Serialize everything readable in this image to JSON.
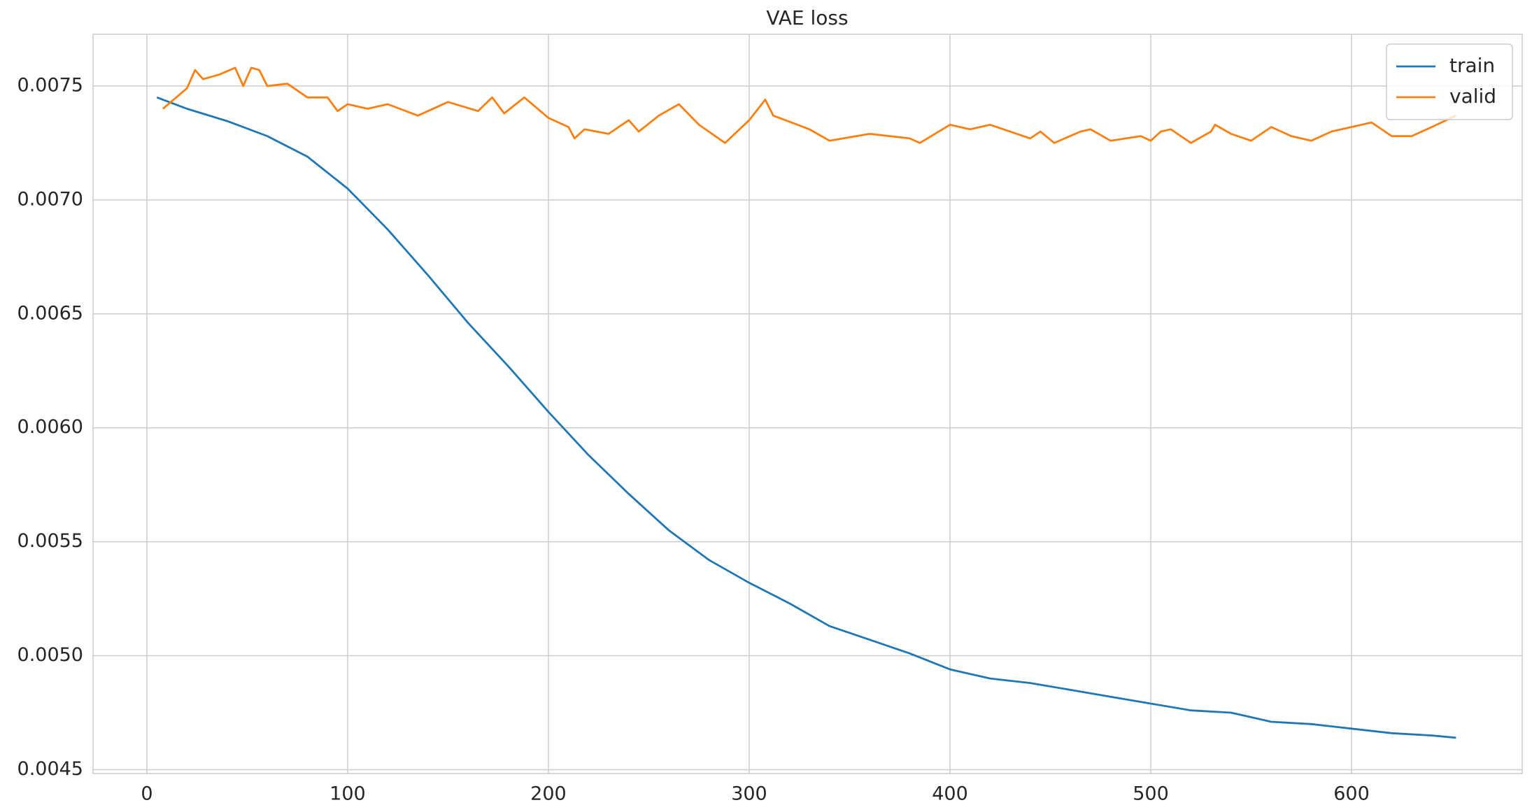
{
  "chart_data": {
    "type": "line",
    "title": "VAE loss",
    "xlim": [
      -26.8,
      685
    ],
    "xticks": [
      0,
      100,
      200,
      300,
      400,
      500,
      600
    ],
    "ylim": [
      0.004483,
      0.007727
    ],
    "yticks": [
      0.0045,
      {
        "value": 0.005,
        "label": "0.0050"
      },
      0.0055,
      {
        "value": 0.006,
        "label": "0.0060"
      },
      0.0065,
      {
        "value": 0.007,
        "label": "0.0070"
      },
      0.0075
    ],
    "grid": true,
    "legend": "upper-right",
    "series": [
      {
        "name": "train",
        "color": "#1f77b4",
        "x": [
          5,
          20,
          40,
          60,
          80,
          100,
          120,
          140,
          160,
          180,
          200,
          220,
          240,
          260,
          280,
          300,
          320,
          340,
          360,
          380,
          400,
          420,
          440,
          460,
          480,
          500,
          520,
          540,
          560,
          580,
          600,
          620,
          640,
          652
        ],
        "values": [
          0.00745,
          0.0074,
          0.007346,
          0.00728,
          0.00719,
          0.00705,
          0.00687,
          0.00667,
          0.00646,
          0.00627,
          0.00607,
          0.00588,
          0.00571,
          0.00555,
          0.00542,
          0.00532,
          0.00523,
          0.00513,
          0.00507,
          0.00501,
          0.00494,
          0.0049,
          0.00488,
          0.00485,
          0.00482,
          0.00479,
          0.00476,
          0.00475,
          0.00471,
          0.0047,
          0.00468,
          0.00466,
          0.00465,
          0.00464
        ]
      },
      {
        "name": "valid",
        "color": "#ff7f0e",
        "x": [
          8,
          20,
          24,
          28,
          36,
          44,
          48,
          52,
          56,
          60,
          70,
          80,
          90,
          95,
          100,
          110,
          120,
          135,
          150,
          165,
          172,
          178,
          188,
          200,
          210,
          213,
          218,
          230,
          240,
          245,
          255,
          265,
          275,
          288,
          300,
          308,
          312,
          330,
          340,
          360,
          380,
          385,
          400,
          410,
          420,
          440,
          445,
          452,
          465,
          470,
          480,
          495,
          500,
          505,
          510,
          520,
          530,
          532,
          540,
          550,
          560,
          570,
          580,
          590,
          600,
          610,
          620,
          630,
          640,
          652
        ],
        "values": [
          0.0074,
          0.00749,
          0.00757,
          0.00753,
          0.00755,
          0.00758,
          0.0075,
          0.00758,
          0.00757,
          0.0075,
          0.00751,
          0.00745,
          0.00745,
          0.00739,
          0.00742,
          0.0074,
          0.00742,
          0.00737,
          0.00743,
          0.00739,
          0.00745,
          0.00738,
          0.00745,
          0.00736,
          0.00732,
          0.00727,
          0.00731,
          0.00729,
          0.00735,
          0.0073,
          0.00737,
          0.00742,
          0.00733,
          0.00725,
          0.00735,
          0.00744,
          0.00737,
          0.00731,
          0.00726,
          0.00729,
          0.00727,
          0.00725,
          0.00733,
          0.00731,
          0.00733,
          0.00727,
          0.0073,
          0.00725,
          0.0073,
          0.00731,
          0.00726,
          0.00728,
          0.00726,
          0.0073,
          0.00731,
          0.00725,
          0.0073,
          0.00733,
          0.00729,
          0.00726,
          0.00732,
          0.00728,
          0.00726,
          0.0073,
          0.00732,
          0.00734,
          0.00728,
          0.00728,
          0.00732,
          0.00737
        ]
      }
    ]
  }
}
